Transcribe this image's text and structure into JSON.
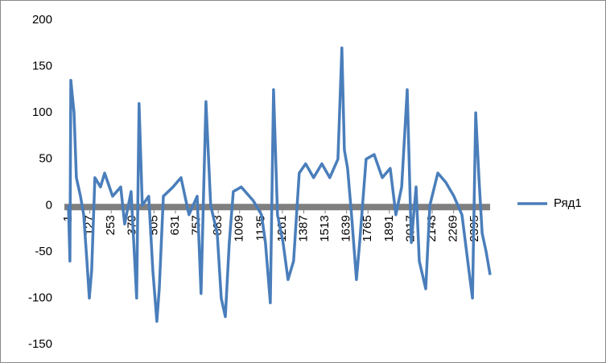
{
  "chart_data": {
    "type": "line",
    "x": [
      1,
      10,
      15,
      34,
      48,
      72,
      91,
      110,
      124,
      138,
      157,
      190,
      214,
      261,
      309,
      332,
      370,
      403,
      417,
      436,
      474,
      498,
      522,
      536,
      560,
      617,
      664,
      711,
      759,
      782,
      811,
      839,
      877,
      901,
      925,
      948,
      972,
      1019,
      1090,
      1138,
      1161,
      1190,
      1209,
      1232,
      1265,
      1294,
      1327,
      1360,
      1398,
      1445,
      1493,
      1540,
      1588,
      1611,
      1626,
      1645,
      1668,
      1697,
      1716,
      1754,
      1801,
      1849,
      1896,
      1929,
      1963,
      1996,
      2020,
      2048,
      2067,
      2105,
      2129,
      2176,
      2223,
      2271,
      2318,
      2366,
      2380,
      2399,
      2418,
      2437,
      2461,
      2484
    ],
    "series": [
      {
        "name": "Ряд1",
        "color": "#4a7ebb",
        "values": [
          0,
          -60,
          135,
          100,
          30,
          10,
          -10,
          -60,
          -100,
          -70,
          30,
          20,
          35,
          10,
          20,
          -20,
          15,
          -100,
          110,
          0,
          10,
          -70,
          -125,
          -90,
          10,
          20,
          30,
          -10,
          10,
          -95,
          112,
          0,
          -30,
          -100,
          -120,
          -40,
          15,
          20,
          5,
          -10,
          -40,
          -105,
          125,
          -10,
          -40,
          -80,
          -60,
          35,
          45,
          30,
          45,
          30,
          50,
          170,
          60,
          40,
          -10,
          -80,
          -40,
          50,
          55,
          30,
          40,
          -10,
          20,
          125,
          -40,
          20,
          -60,
          -90,
          0,
          35,
          25,
          10,
          -10,
          -80,
          -100,
          100,
          30,
          -30,
          -50,
          -75
        ]
      }
    ],
    "xlim": [
      1,
      2484
    ],
    "xticks": [
      1,
      127,
      253,
      379,
      505,
      631,
      757,
      883,
      1009,
      1135,
      1261,
      1387,
      1513,
      1639,
      1765,
      1891,
      2017,
      2143,
      2269,
      2395
    ],
    "ylim": [
      -150,
      200
    ],
    "yticks": [
      -150,
      -100,
      -50,
      0,
      50,
      100,
      150,
      200
    ],
    "legend": "right"
  }
}
